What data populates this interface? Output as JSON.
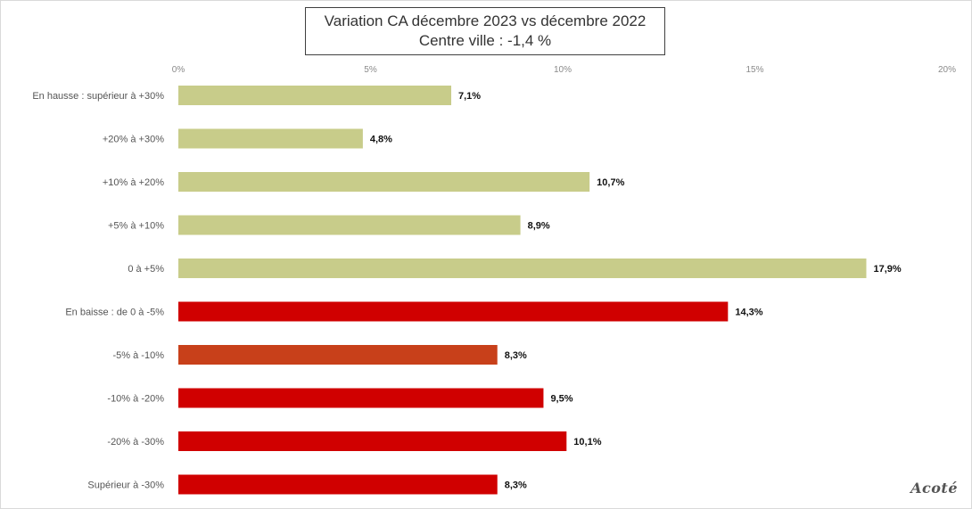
{
  "chart_data": {
    "type": "bar",
    "orientation": "horizontal",
    "title": "Variation CA décembre 2023 vs décembre 2022",
    "subtitle": "Centre ville  : -1,4 %",
    "categories": [
      "En hausse : supérieur à +30%",
      "+20% à +30%",
      "+10% à +20%",
      "+5% à +10%",
      "0 à +5%",
      "En baisse : de 0 à -5%",
      "-5% à -10%",
      "-10% à -20%",
      "-20% à -30%",
      "Supérieur à -30%"
    ],
    "values": [
      7.1,
      4.8,
      10.7,
      8.9,
      17.9,
      14.3,
      8.3,
      9.5,
      10.1,
      8.3
    ],
    "data_labels": [
      "7,1%",
      "4,8%",
      "10,7%",
      "8,9%",
      "17,9%",
      "14,3%",
      "8,3%",
      "9,5%",
      "10,1%",
      "8,3%"
    ],
    "bar_colors": [
      "#c8cc8a",
      "#c8cc8a",
      "#c8cc8a",
      "#c8cc8a",
      "#c8cc8a",
      "#d00000",
      "#c8401a",
      "#d00000",
      "#d00000",
      "#d00000"
    ],
    "xlim": [
      0,
      20
    ],
    "xticks": [
      0,
      5,
      10,
      15,
      20
    ],
    "xtick_labels": [
      "0%",
      "5%",
      "10%",
      "15%",
      "20%"
    ],
    "xaxis_position": "top",
    "grid": false,
    "legend": "none"
  },
  "logo_text": "Acoté"
}
